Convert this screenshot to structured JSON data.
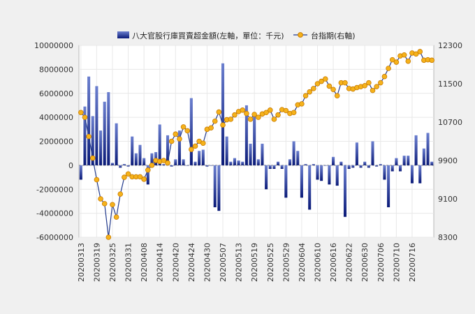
{
  "chart_data": {
    "type": "bar",
    "legend": {
      "placement": "top-center",
      "bar_label": "八大官股行庫買賣超金額(左軸，單位：千元)",
      "line_label": "台指期(右軸)"
    },
    "colors": {
      "bar_top": "#6b7fcf",
      "bar_bottom": "#0a1a78",
      "line": "#223a8c",
      "marker_fill": "#f5b21b",
      "marker_stroke": "#c77a00",
      "grid": "#e8e8e8",
      "plot_bg": "#ffffff",
      "page_bg": "#f0f0f0"
    },
    "x_ticks": [
      "20200313",
      "20200319",
      "20200325",
      "20200331",
      "20200408",
      "20200414",
      "20200420",
      "20200424",
      "20200430",
      "20200507",
      "20200513",
      "20200519",
      "20200525",
      "20200529",
      "20200604",
      "20200610",
      "20200616",
      "20200622",
      "20200630",
      "20200706",
      "20200710",
      "20200716"
    ],
    "tick_every": 4,
    "y_left": {
      "min": -6000000,
      "max": 10000000,
      "step": 2000000,
      "ticks": [
        "-6000000",
        "-4000000",
        "-2000000",
        "0",
        "2000000",
        "4000000",
        "6000000",
        "8000000",
        "10000000"
      ]
    },
    "y_right": {
      "min": 8300,
      "max": 12300,
      "step": 800,
      "ticks": [
        "8300",
        "9100",
        "9900",
        "10700",
        "11500",
        "12300"
      ]
    },
    "series": [
      {
        "name": "八大官股行庫買賣超金額(左軸，單位：千元)",
        "axis": "left",
        "kind": "bar",
        "values": [
          -1200000,
          4900000,
          7400000,
          4100000,
          6600000,
          2900000,
          5300000,
          6100000,
          200000,
          3500000,
          -200000,
          100000,
          -100000,
          2400000,
          1000000,
          1700000,
          600000,
          -1600000,
          1000000,
          1100000,
          3400000,
          100000,
          2500000,
          -100000,
          500000,
          2900000,
          500000,
          0,
          5600000,
          300000,
          1200000,
          1300000,
          -100000,
          0,
          -3500000,
          -3800000,
          8500000,
          2400000,
          300000,
          600000,
          400000,
          300000,
          5000000,
          1800000,
          4300000,
          500000,
          1800000,
          -2000000,
          -300000,
          -300000,
          300000,
          -300000,
          -2700000,
          500000,
          2000000,
          1200000,
          -2700000,
          100000,
          -3700000,
          100000,
          -1200000,
          -1300000,
          0,
          -1600000,
          700000,
          -1700000,
          300000,
          -4300000,
          -300000,
          -200000,
          1900000,
          -200000,
          300000,
          -200000,
          2000000,
          -100000,
          100000,
          -1200000,
          -3500000,
          -500000,
          600000,
          -500000,
          800000,
          800000,
          -1500000,
          2500000,
          -1500000,
          1400000,
          2700000,
          300000
        ]
      },
      {
        "name": "台指期(右軸)",
        "axis": "right",
        "kind": "line",
        "values": [
          10900,
          10800,
          10400,
          9950,
          9500,
          9100,
          9000,
          8300,
          8980,
          8720,
          9200,
          9550,
          9620,
          9560,
          9560,
          9560,
          9510,
          9700,
          9800,
          9900,
          9880,
          9900,
          9850,
          10300,
          10450,
          10350,
          10600,
          10520,
          10130,
          10200,
          10300,
          10260,
          10550,
          10580,
          10720,
          10910,
          10640,
          10750,
          10760,
          10850,
          10920,
          10950,
          10880,
          10760,
          10860,
          10800,
          10870,
          10900,
          10950,
          10760,
          10850,
          10960,
          10940,
          10880,
          10900,
          11060,
          11080,
          11250,
          11330,
          11400,
          11500,
          11550,
          11600,
          11450,
          11380,
          11250,
          11520,
          11520,
          11400,
          11390,
          11420,
          11440,
          11460,
          11520,
          11360,
          11440,
          11520,
          11650,
          11820,
          12000,
          11950,
          12080,
          12100,
          11970,
          12140,
          12120,
          12170,
          11990,
          12000,
          11990
        ]
      }
    ]
  }
}
